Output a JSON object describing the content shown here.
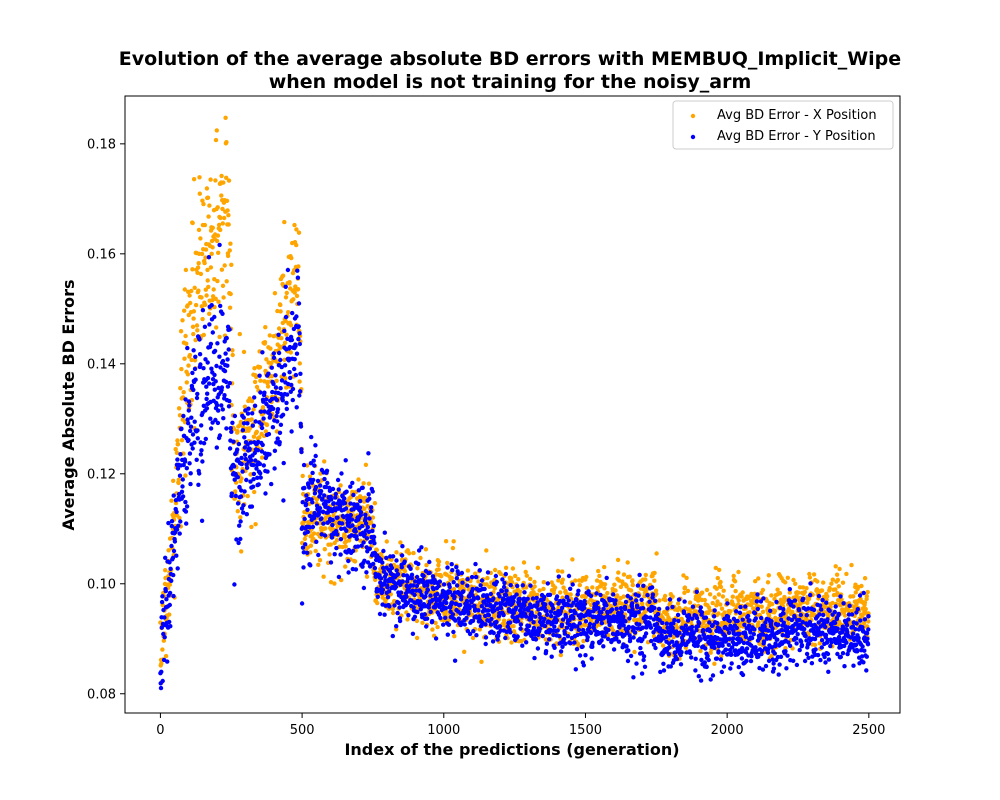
{
  "chart_data": {
    "type": "scatter",
    "title": [
      "Evolution of the average absolute BD errors with MEMBUQ_Implicit_Wipe",
      "when model is not training for the noisy_arm"
    ],
    "xlabel": "Index of the predictions (generation)",
    "ylabel": "Average Absolute BD Errors",
    "xlim": [
      -125,
      2610
    ],
    "ylim": [
      0.0765,
      0.1887
    ],
    "xticks": [
      0,
      500,
      1000,
      1500,
      2000,
      2500
    ],
    "xtick_labels": [
      "0",
      "500",
      "1000",
      "1500",
      "2000",
      "2500"
    ],
    "yticks": [
      0.08,
      0.1,
      0.12,
      0.14,
      0.16,
      0.18
    ],
    "ytick_labels": [
      "0.08",
      "0.10",
      "0.12",
      "0.14",
      "0.16",
      "0.18"
    ],
    "grid": false,
    "legend_position": "top-right",
    "n_points_per_series": 2500,
    "series": [
      {
        "name": "Avg BD Error - X Position",
        "color": "#FFA500",
        "trend": [
          [
            0,
            0.089
          ],
          [
            25,
            0.098
          ],
          [
            50,
            0.112
          ],
          [
            75,
            0.132
          ],
          [
            100,
            0.145
          ],
          [
            150,
            0.158
          ],
          [
            200,
            0.164
          ],
          [
            240,
            0.166
          ],
          [
            260,
            0.122
          ],
          [
            300,
            0.125
          ],
          [
            350,
            0.132
          ],
          [
            400,
            0.14
          ],
          [
            450,
            0.15
          ],
          [
            490,
            0.156
          ],
          [
            500,
            0.113
          ],
          [
            600,
            0.111
          ],
          [
            700,
            0.111
          ],
          [
            750,
            0.11
          ],
          [
            760,
            0.102
          ],
          [
            850,
            0.1
          ],
          [
            1000,
            0.098
          ],
          [
            1200,
            0.096
          ],
          [
            1400,
            0.095
          ],
          [
            1600,
            0.096
          ],
          [
            1750,
            0.097
          ],
          [
            1760,
            0.093
          ],
          [
            2000,
            0.094
          ],
          [
            2200,
            0.095
          ],
          [
            2400,
            0.096
          ],
          [
            2500,
            0.095
          ]
        ],
        "spread": [
          [
            0,
            0.005
          ],
          [
            100,
            0.011
          ],
          [
            240,
            0.011
          ],
          [
            260,
            0.008
          ],
          [
            490,
            0.008
          ],
          [
            500,
            0.005
          ],
          [
            750,
            0.005
          ],
          [
            760,
            0.004
          ],
          [
            2500,
            0.0035
          ]
        ]
      },
      {
        "name": "Avg BD Error - Y Position",
        "color": "#0000FF",
        "trend": [
          [
            0,
            0.088
          ],
          [
            25,
            0.096
          ],
          [
            50,
            0.108
          ],
          [
            75,
            0.122
          ],
          [
            100,
            0.128
          ],
          [
            150,
            0.135
          ],
          [
            200,
            0.136
          ],
          [
            240,
            0.137
          ],
          [
            260,
            0.118
          ],
          [
            300,
            0.121
          ],
          [
            350,
            0.126
          ],
          [
            400,
            0.133
          ],
          [
            450,
            0.141
          ],
          [
            490,
            0.146
          ],
          [
            500,
            0.114
          ],
          [
            600,
            0.113
          ],
          [
            700,
            0.111
          ],
          [
            750,
            0.11
          ],
          [
            760,
            0.101
          ],
          [
            850,
            0.099
          ],
          [
            1000,
            0.097
          ],
          [
            1200,
            0.095
          ],
          [
            1400,
            0.093
          ],
          [
            1600,
            0.093
          ],
          [
            1750,
            0.093
          ],
          [
            1760,
            0.09
          ],
          [
            2000,
            0.09
          ],
          [
            2200,
            0.091
          ],
          [
            2400,
            0.091
          ],
          [
            2500,
            0.091
          ]
        ],
        "spread": [
          [
            0,
            0.005
          ],
          [
            100,
            0.009
          ],
          [
            240,
            0.009
          ],
          [
            260,
            0.007
          ],
          [
            490,
            0.007
          ],
          [
            500,
            0.005
          ],
          [
            750,
            0.005
          ],
          [
            760,
            0.004
          ],
          [
            2500,
            0.0033
          ]
        ]
      }
    ]
  }
}
